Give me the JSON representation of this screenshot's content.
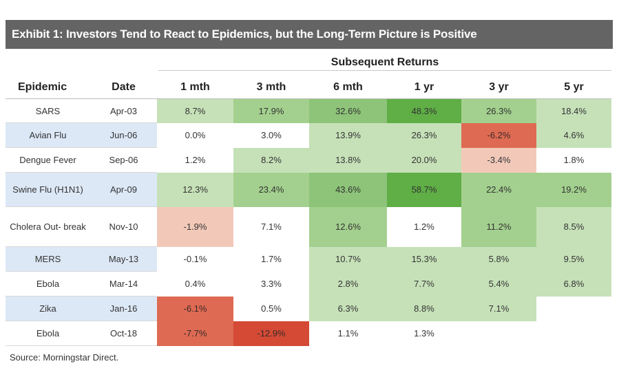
{
  "title": "Exhibit 1: Investors Tend to React to Epidemics, but the Long-Term Picture is Positive",
  "super_header": "Subsequent Returns",
  "columns": [
    "Epidemic",
    "Date",
    "1 mth",
    "3 mth",
    "6 mth",
    "1 yr",
    "3 yr",
    "5 yr"
  ],
  "rows": [
    {
      "epidemic": "SARS",
      "date": "Apr-03",
      "values": [
        "8.7%",
        "17.9%",
        "32.6%",
        "48.3%",
        "26.3%",
        "18.4%"
      ]
    },
    {
      "epidemic": "Avian Flu",
      "date": "Jun-06",
      "values": [
        "0.0%",
        "3.0%",
        "13.9%",
        "26.3%",
        "-6.2%",
        "4.6%"
      ]
    },
    {
      "epidemic": "Dengue Fever",
      "date": "Sep-06",
      "values": [
        "1.2%",
        "8.2%",
        "13.8%",
        "20.0%",
        "-3.4%",
        "1.8%"
      ]
    },
    {
      "epidemic": "Swine Flu (H1N1)",
      "date": "Apr-09",
      "values": [
        "12.3%",
        "23.4%",
        "43.6%",
        "58.7%",
        "22.4%",
        "19.2%"
      ]
    },
    {
      "epidemic": "Cholera Out- break",
      "date": "Nov-10",
      "values": [
        "-1.9%",
        "7.1%",
        "12.6%",
        "1.2%",
        "11.2%",
        "8.5%"
      ]
    },
    {
      "epidemic": "MERS",
      "date": "May-13",
      "values": [
        "-0.1%",
        "1.7%",
        "10.7%",
        "15.3%",
        "5.8%",
        "9.5%"
      ]
    },
    {
      "epidemic": "Ebola",
      "date": "Mar-14",
      "values": [
        "0.4%",
        "3.3%",
        "2.8%",
        "7.7%",
        "5.4%",
        "6.8%"
      ]
    },
    {
      "epidemic": "Zika",
      "date": "Jan-16",
      "values": [
        "-6.1%",
        "0.5%",
        "6.3%",
        "8.8%",
        "7.1%",
        ""
      ]
    },
    {
      "epidemic": "Ebola",
      "date": "Oct-18",
      "values": [
        "-7.7%",
        "-12.9%",
        "1.1%",
        "1.3%",
        "",
        ""
      ]
    }
  ],
  "colors": {
    "title_bar": "#646464",
    "row_shade": "#dde8f6",
    "pos_light": "#c6e1b8",
    "pos_mid": "#a3d08e",
    "pos_strong": "#8dc479",
    "pos_max": "#5fae46",
    "neg_light": "#f2c9b9",
    "neg_mid": "#e88f78",
    "neg_strong": "#de6a53",
    "neg_max": "#d44a35"
  },
  "source": "Source: Morningstar Direct."
}
